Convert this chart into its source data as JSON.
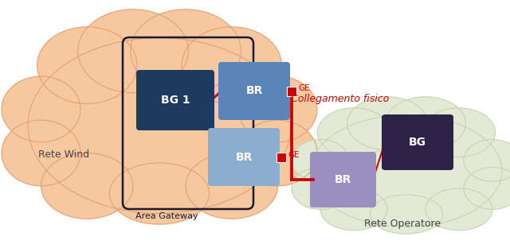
{
  "fig_width": 6.4,
  "fig_height": 3.12,
  "dpi": 100,
  "bg_color": "#ffffff",
  "orange_cloud_color": "#F5C8A0",
  "orange_cloud_edge": "#E8A070",
  "green_cloud_color": "#E2EAD5",
  "green_cloud_edge": "#C8D4B0",
  "ag_label": "Area Gateway",
  "rete_wind_label": "Rete Wind",
  "rete_op_label": "Rete Operatore",
  "bg1_color": "#1E3A5F",
  "bg1_label": "BG 1",
  "br1_color": "#5B85B8",
  "br1_label": "BR",
  "br2_color": "#8AADD0",
  "br2_label": "BR",
  "br3_color": "#9B8FC0",
  "br3_label": "BR",
  "bg_dark_color": "#2E2248",
  "bg_label": "BG",
  "ge_label": "GE",
  "collegamento_label": "Collegamento fisico",
  "red_color": "#CC0000",
  "dark_color": "#1A1A2E",
  "line_width": 2.2
}
